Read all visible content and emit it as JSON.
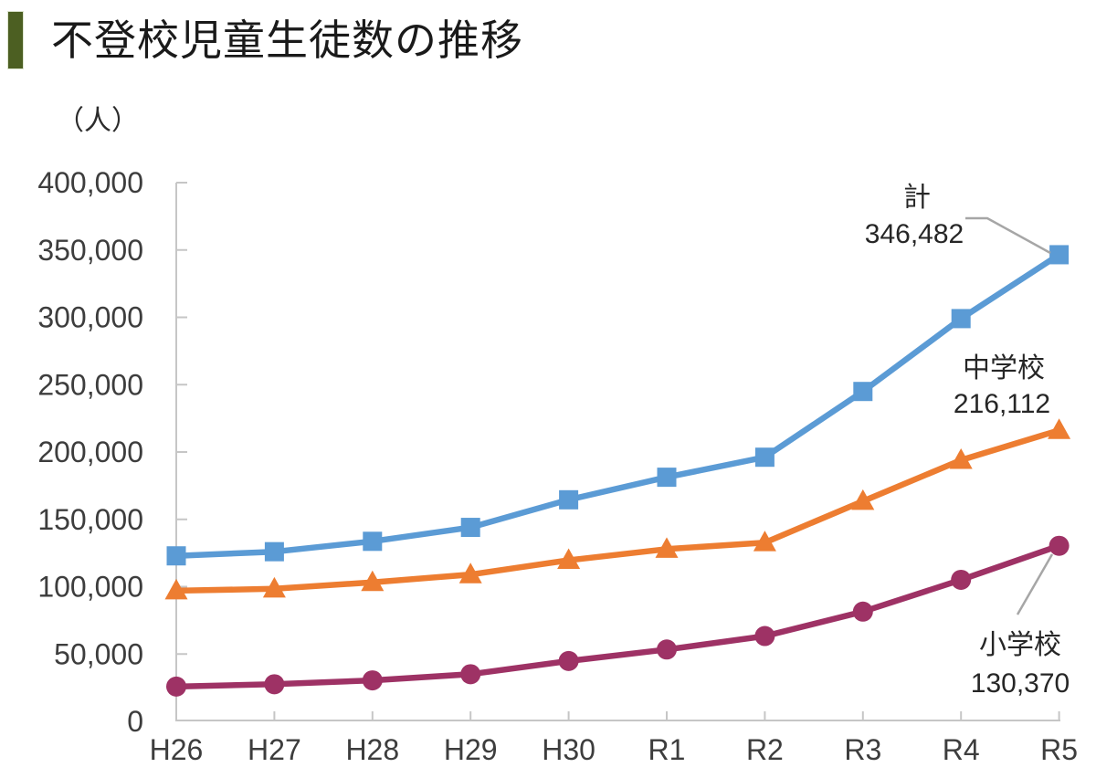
{
  "page": {
    "title": "不登校児童生徒数の推移"
  },
  "colors": {
    "accent_bar": "#4C5F22",
    "axis": "#c6c6c6",
    "axis_label_text": "#3d3d3d",
    "annotation_text": "#262626",
    "leader_line": "#a6a6a6",
    "series_total": "#5B9BD5",
    "series_junior_high": "#ED7D31",
    "series_elementary": "#9E3265"
  },
  "chart_data": {
    "type": "line",
    "title": "不登校児童生徒数の推移",
    "ylabel": "（人）",
    "xlabel": "",
    "x": [
      "H26",
      "H27",
      "H28",
      "H29",
      "H30",
      "R1",
      "R2",
      "R3",
      "R4",
      "R5"
    ],
    "series": [
      {
        "name": "計",
        "color": "#5B9BD5",
        "marker": "square",
        "values": [
          122897,
          125991,
          133683,
          144031,
          164528,
          181272,
          196127,
          244940,
          299048,
          346482
        ]
      },
      {
        "name": "中学校",
        "color": "#ED7D31",
        "marker": "triangle",
        "values": [
          97033,
          98408,
          103235,
          108999,
          119687,
          127922,
          132777,
          163442,
          193936,
          216112
        ]
      },
      {
        "name": "小学校",
        "color": "#9E3265",
        "marker": "circle",
        "values": [
          25864,
          27583,
          30448,
          35032,
          44841,
          53350,
          63350,
          81498,
          105112,
          130370
        ]
      }
    ],
    "ylim": [
      0,
      400000
    ],
    "ytick_interval": 50000,
    "ytick_labels": [
      "0",
      "50,000",
      "100,000",
      "150,000",
      "200,000",
      "250,000",
      "300,000",
      "350,000",
      "400,000"
    ],
    "grid": false,
    "legend": "direct-labels",
    "annotations": [
      {
        "series": "計",
        "label": "計",
        "value_text": "346,482"
      },
      {
        "series": "中学校",
        "label": "中学校",
        "value_text": "216,112"
      },
      {
        "series": "小学校",
        "label": "小学校",
        "value_text": "130,370"
      }
    ]
  }
}
